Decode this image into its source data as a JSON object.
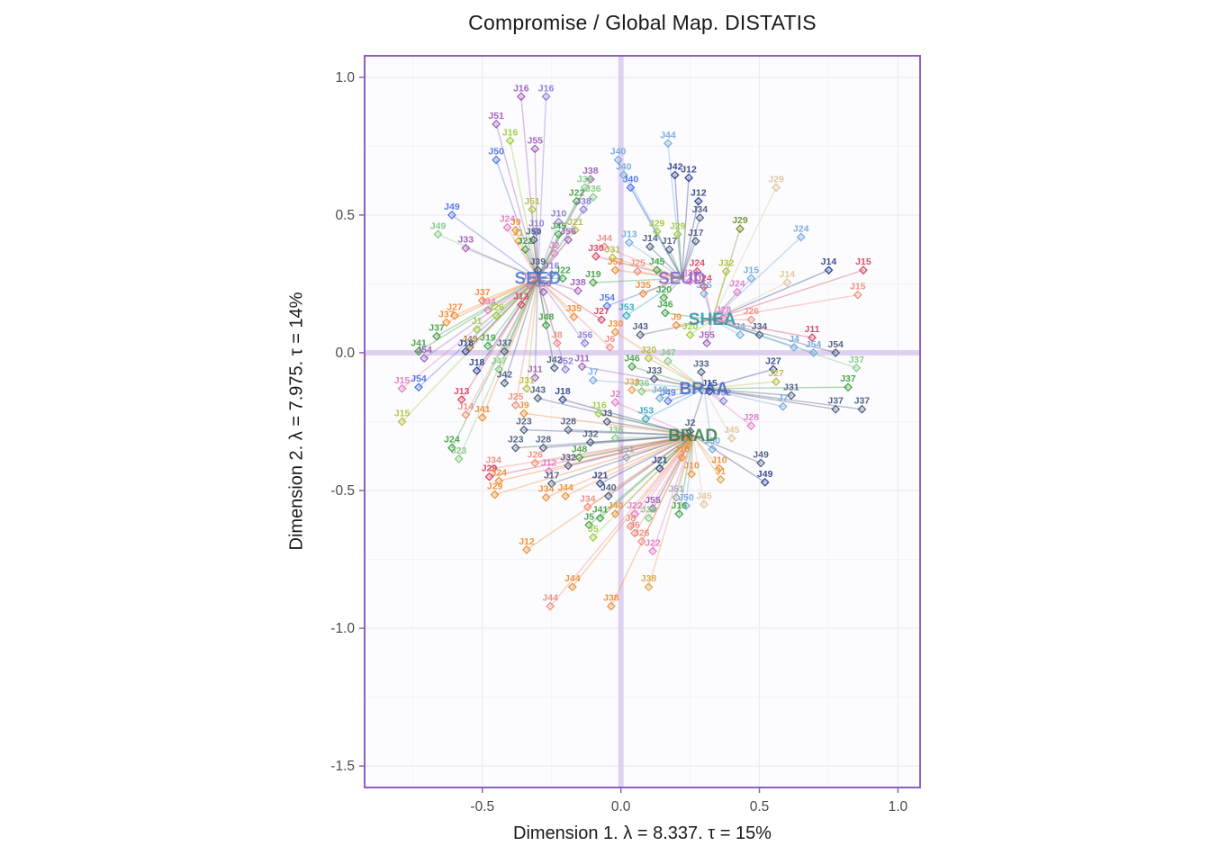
{
  "chart_data": {
    "type": "scatter",
    "title": "Compromise / Global Map. DISTATIS",
    "xlabel": "Dimension 1.   λ = 8.337.   τ = 15%",
    "ylabel": "Dimension 2.   λ = 7.975.   τ = 14%",
    "xlim": [
      -0.925,
      1.08
    ],
    "ylim": [
      -1.578,
      1.078
    ],
    "grid": true,
    "legend": "none",
    "xticks": [
      {
        "v": -0.5,
        "label": "-0.5"
      },
      {
        "v": 0.0,
        "label": "0.0"
      },
      {
        "v": 0.5,
        "label": "0.5"
      },
      {
        "v": 1.0,
        "label": "1.0"
      }
    ],
    "yticks": [
      {
        "v": 1.0,
        "label": "1.0"
      },
      {
        "v": 0.5,
        "label": "0.5"
      },
      {
        "v": 0.0,
        "label": "0.0"
      },
      {
        "v": -0.5,
        "label": "-0.5"
      },
      {
        "v": -1.0,
        "label": "-1.0"
      },
      {
        "v": -1.5,
        "label": "-1.5"
      }
    ],
    "minor_x": [
      -0.75,
      -0.25,
      0.25,
      0.75
    ],
    "minor_y": [
      -1.25,
      -0.75,
      -0.25,
      0.25,
      0.75
    ],
    "colors": {
      "panel_bg": "#fcfbfe",
      "grid_major": "#eceaf2",
      "grid_minor": "#f4f3f9",
      "crosshair": "#dccdf0",
      "border": "#8f5ec0",
      "tick_text": "#4a4a4a",
      "title_text": "#1a1a1a"
    },
    "palette": [
      "#4a6fe3",
      "#8676d4",
      "#9b59b6",
      "#e377c2",
      "#d9415a",
      "#ef8a7a",
      "#f08c2e",
      "#e0a23e",
      "#ddc49a",
      "#b5bd3a",
      "#9acd32",
      "#3ca03c",
      "#7fc97f",
      "#2aa8b8",
      "#6fa8dc",
      "#46597a",
      "#27408b",
      "#a0784a",
      "#9aa5b1",
      "#6b8e23"
    ],
    "centers": [
      {
        "label": "SEED",
        "x": -0.3,
        "y": 0.27,
        "color": "#4a79c4"
      },
      {
        "label": "SEUD",
        "x": 0.22,
        "y": 0.27,
        "color": "#8a63c9"
      },
      {
        "label": "SHEA",
        "x": 0.33,
        "y": 0.12,
        "color": "#2a93a8"
      },
      {
        "label": "BRAA",
        "x": 0.3,
        "y": -0.13,
        "color": "#4466bb"
      },
      {
        "label": "BRAD",
        "x": 0.26,
        "y": -0.3,
        "color": "#3a7d44"
      }
    ],
    "points": [
      [
        "J16",
        -0.36,
        0.93,
        2,
        0
      ],
      [
        "J16",
        -0.27,
        0.93,
        1,
        0
      ],
      [
        "J51",
        -0.45,
        0.83,
        2,
        0
      ],
      [
        "J16",
        -0.4,
        0.77,
        10,
        0
      ],
      [
        "J55",
        -0.31,
        0.74,
        2,
        0
      ],
      [
        "J50",
        -0.45,
        0.7,
        0,
        0
      ],
      [
        "J49",
        -0.61,
        0.5,
        0,
        0
      ],
      [
        "J49",
        -0.66,
        0.43,
        12,
        0
      ],
      [
        "J33",
        -0.56,
        0.38,
        2,
        0
      ],
      [
        "J24",
        -0.41,
        0.455,
        3,
        0
      ],
      [
        "J9",
        -0.38,
        0.445,
        6,
        0
      ],
      [
        "J10",
        -0.305,
        0.44,
        1,
        0
      ],
      [
        "J50",
        -0.315,
        0.41,
        15,
        0
      ],
      [
        "J1",
        -0.37,
        0.405,
        7,
        0
      ],
      [
        "J22",
        -0.345,
        0.375,
        11,
        0
      ],
      [
        "J51",
        -0.32,
        0.52,
        9,
        0
      ],
      [
        "J38",
        -0.135,
        0.52,
        1,
        0
      ],
      [
        "J22",
        -0.16,
        0.55,
        11,
        0
      ],
      [
        "J36",
        -0.13,
        0.6,
        12,
        0
      ],
      [
        "J36",
        -0.1,
        0.565,
        12,
        0
      ],
      [
        "J38",
        -0.11,
        0.63,
        2,
        0
      ],
      [
        "J45",
        -0.225,
        0.43,
        11,
        0
      ],
      [
        "J21",
        -0.165,
        0.445,
        9,
        0
      ],
      [
        "J10",
        -0.225,
        0.475,
        1,
        0
      ],
      [
        "J56",
        -0.19,
        0.41,
        2,
        0
      ],
      [
        "J44",
        0.17,
        0.76,
        14,
        1
      ],
      [
        "J40",
        -0.01,
        0.7,
        14,
        1
      ],
      [
        "J40",
        0.01,
        0.645,
        14,
        1
      ],
      [
        "J40",
        0.035,
        0.6,
        0,
        1
      ],
      [
        "J42",
        0.195,
        0.645,
        16,
        1
      ],
      [
        "J12",
        0.245,
        0.635,
        16,
        1
      ],
      [
        "J12",
        0.28,
        0.55,
        16,
        1
      ],
      [
        "J34",
        0.285,
        0.49,
        15,
        1
      ],
      [
        "J29",
        0.13,
        0.44,
        10,
        1
      ],
      [
        "J29",
        0.205,
        0.43,
        10,
        1
      ],
      [
        "J17",
        0.27,
        0.405,
        15,
        1
      ],
      [
        "J30",
        -0.09,
        0.35,
        4,
        1
      ],
      [
        "J44",
        -0.06,
        0.385,
        5,
        1
      ],
      [
        "J31",
        -0.03,
        0.345,
        9,
        1
      ],
      [
        "J13",
        0.03,
        0.4,
        14,
        1
      ],
      [
        "J14",
        0.105,
        0.385,
        15,
        1
      ],
      [
        "J17",
        0.175,
        0.375,
        15,
        1
      ],
      [
        "J52",
        -0.02,
        0.3,
        6,
        1
      ],
      [
        "J25",
        0.06,
        0.295,
        5,
        1
      ],
      [
        "J45",
        0.13,
        0.3,
        11,
        1
      ],
      [
        "J19",
        -0.1,
        0.255,
        11,
        1
      ],
      [
        "J54",
        -0.05,
        0.17,
        0,
        1
      ],
      [
        "J53",
        0.02,
        0.135,
        13,
        1
      ],
      [
        "J20",
        0.155,
        0.2,
        11,
        1
      ],
      [
        "J35",
        0.08,
        0.215,
        6,
        1
      ],
      [
        "J24",
        0.275,
        0.295,
        4,
        1
      ],
      [
        "J23",
        0.25,
        0.26,
        3,
        1
      ],
      [
        "J29",
        0.56,
        0.6,
        8,
        2
      ],
      [
        "J24",
        0.65,
        0.42,
        14,
        2
      ],
      [
        "J29",
        0.43,
        0.45,
        19,
        2
      ],
      [
        "J14",
        0.75,
        0.3,
        16,
        2
      ],
      [
        "J15",
        0.875,
        0.3,
        4,
        2
      ],
      [
        "J15",
        0.855,
        0.21,
        5,
        2
      ],
      [
        "J14",
        0.6,
        0.255,
        8,
        2
      ],
      [
        "J15",
        0.47,
        0.27,
        14,
        2
      ],
      [
        "J32",
        0.38,
        0.295,
        9,
        2
      ],
      [
        "J24",
        0.42,
        0.22,
        3,
        2
      ],
      [
        "J24",
        0.3,
        0.24,
        4,
        2
      ],
      [
        "J15",
        0.3,
        0.215,
        14,
        2
      ],
      [
        "J54",
        0.695,
        0.0,
        14,
        2
      ],
      [
        "J54",
        0.775,
        0.0,
        15,
        2
      ],
      [
        "J37",
        0.85,
        -0.055,
        12,
        2
      ],
      [
        "J11",
        0.69,
        0.055,
        4,
        2
      ],
      [
        "J4",
        0.625,
        0.02,
        14,
        2
      ],
      [
        "J34",
        0.5,
        0.065,
        15,
        2
      ],
      [
        "J46",
        0.16,
        0.145,
        11,
        2
      ],
      [
        "J9",
        0.2,
        0.1,
        6,
        2
      ],
      [
        "J20",
        0.25,
        0.065,
        10,
        2
      ],
      [
        "J55",
        0.31,
        0.035,
        2,
        2
      ],
      [
        "J28",
        0.37,
        0.125,
        3,
        2
      ],
      [
        "J4",
        0.43,
        0.065,
        14,
        2
      ],
      [
        "J26",
        0.47,
        0.12,
        5,
        2
      ],
      [
        "J43",
        0.07,
        0.065,
        15,
        2
      ],
      [
        "J27",
        0.55,
        -0.06,
        16,
        3
      ],
      [
        "J27",
        0.56,
        -0.105,
        9,
        3
      ],
      [
        "J31",
        0.615,
        -0.155,
        15,
        3
      ],
      [
        "J7",
        0.585,
        -0.195,
        14,
        3
      ],
      [
        "J37",
        0.82,
        -0.125,
        11,
        3
      ],
      [
        "J37",
        0.775,
        -0.205,
        15,
        3
      ],
      [
        "J37",
        0.87,
        -0.205,
        15,
        3
      ],
      [
        "J28",
        0.47,
        -0.265,
        3,
        3
      ],
      [
        "J2",
        0.25,
        -0.285,
        15,
        3
      ],
      [
        "J15",
        0.32,
        -0.14,
        16,
        3
      ],
      [
        "J33",
        0.29,
        -0.07,
        15,
        3
      ],
      [
        "J49",
        0.17,
        -0.175,
        0,
        3
      ],
      [
        "J36",
        0.075,
        -0.14,
        12,
        3
      ],
      [
        "J33",
        0.12,
        -0.095,
        15,
        3
      ],
      [
        "J49",
        0.14,
        -0.165,
        14,
        3
      ],
      [
        "J46",
        0.04,
        -0.05,
        11,
        3
      ],
      [
        "J47",
        0.17,
        -0.03,
        12,
        3
      ],
      [
        "J20",
        0.1,
        -0.02,
        9,
        3
      ],
      [
        "J30",
        -0.02,
        0.075,
        6,
        3
      ],
      [
        "J11",
        -0.14,
        -0.05,
        2,
        3
      ],
      [
        "J7",
        -0.1,
        -0.1,
        14,
        3
      ],
      [
        "J39",
        0.04,
        -0.135,
        7,
        3
      ],
      [
        "J53",
        0.09,
        -0.24,
        13,
        3
      ],
      [
        "J50",
        0.33,
        -0.35,
        14,
        3
      ],
      [
        "J45",
        0.4,
        -0.31,
        8,
        3
      ],
      [
        "J52",
        0.37,
        -0.175,
        1,
        3
      ],
      [
        "J49",
        0.52,
        -0.47,
        16,
        4
      ],
      [
        "J49",
        0.505,
        -0.4,
        15,
        4
      ],
      [
        "J10",
        0.355,
        -0.42,
        6,
        4
      ],
      [
        "J10",
        0.255,
        -0.44,
        6,
        4
      ],
      [
        "J1",
        0.36,
        -0.46,
        7,
        4
      ],
      [
        "J21",
        0.14,
        -0.42,
        16,
        4
      ],
      [
        "J10",
        0.22,
        -0.38,
        6,
        4
      ],
      [
        "J1",
        0.24,
        -0.335,
        7,
        4
      ],
      [
        "J51",
        0.02,
        -0.38,
        18,
        4
      ],
      [
        "J51",
        0.2,
        -0.525,
        18,
        4
      ],
      [
        "J45",
        0.3,
        -0.55,
        8,
        4
      ],
      [
        "J50",
        0.235,
        -0.555,
        14,
        4
      ],
      [
        "J16",
        0.21,
        -0.585,
        11,
        4
      ],
      [
        "J36",
        0.1,
        -0.6,
        12,
        4
      ],
      [
        "J55",
        0.115,
        -0.565,
        2,
        4
      ],
      [
        "J22",
        0.05,
        -0.585,
        3,
        4
      ],
      [
        "J22",
        0.115,
        -0.72,
        3,
        4
      ],
      [
        "J26",
        0.075,
        -0.685,
        5,
        4
      ],
      [
        "J6",
        0.05,
        -0.655,
        5,
        4
      ],
      [
        "J8",
        0.035,
        -0.63,
        5,
        4
      ],
      [
        "J38",
        0.1,
        -0.85,
        7,
        4
      ],
      [
        "J38",
        -0.035,
        -0.92,
        6,
        4
      ],
      [
        "J44",
        -0.255,
        -0.92,
        5,
        4
      ],
      [
        "J44",
        -0.175,
        -0.85,
        6,
        4
      ],
      [
        "J12",
        -0.34,
        -0.715,
        6,
        4
      ],
      [
        "J5",
        -0.1,
        -0.67,
        10,
        4
      ],
      [
        "J5",
        -0.115,
        -0.625,
        11,
        4
      ],
      [
        "J41",
        -0.075,
        -0.6,
        11,
        4
      ],
      [
        "J40",
        -0.02,
        -0.585,
        6,
        4
      ],
      [
        "J34",
        -0.12,
        -0.56,
        5,
        4
      ],
      [
        "J44",
        -0.2,
        -0.52,
        6,
        4
      ],
      [
        "J34",
        -0.27,
        -0.525,
        6,
        4
      ],
      [
        "J17",
        -0.25,
        -0.475,
        15,
        4
      ],
      [
        "J21",
        -0.075,
        -0.475,
        16,
        4
      ],
      [
        "J40",
        -0.045,
        -0.52,
        15,
        4
      ],
      [
        "J32",
        -0.19,
        -0.41,
        15,
        4
      ],
      [
        "J12",
        -0.26,
        -0.43,
        3,
        4
      ],
      [
        "J26",
        -0.31,
        -0.4,
        5,
        4
      ],
      [
        "J23",
        -0.38,
        -0.345,
        15,
        4
      ],
      [
        "J28",
        -0.28,
        -0.345,
        15,
        4
      ],
      [
        "J29",
        -0.475,
        -0.45,
        4,
        4
      ],
      [
        "J29",
        -0.455,
        -0.515,
        6,
        4
      ],
      [
        "J24",
        -0.44,
        -0.465,
        6,
        4
      ],
      [
        "J34",
        -0.46,
        -0.42,
        5,
        4
      ],
      [
        "J48",
        -0.15,
        -0.38,
        11,
        4
      ],
      [
        "J36",
        -0.02,
        -0.31,
        12,
        4
      ],
      [
        "J16",
        -0.08,
        -0.22,
        10,
        4
      ],
      [
        "J2",
        -0.02,
        -0.18,
        3,
        4
      ],
      [
        "J3",
        -0.05,
        -0.25,
        15,
        4
      ],
      [
        "J9",
        -0.35,
        -0.22,
        6,
        4
      ],
      [
        "J18",
        -0.21,
        -0.17,
        16,
        4
      ],
      [
        "J43",
        -0.3,
        -0.165,
        15,
        4
      ],
      [
        "J23",
        -0.35,
        -0.28,
        15,
        4
      ],
      [
        "J28",
        -0.19,
        -0.28,
        15,
        4
      ],
      [
        "J32",
        -0.11,
        -0.325,
        15,
        4
      ],
      [
        "J27",
        -0.6,
        0.135,
        6,
        0
      ],
      [
        "J37",
        -0.63,
        0.11,
        6,
        0
      ],
      [
        "J37",
        -0.665,
        0.06,
        11,
        0
      ],
      [
        "J41",
        -0.73,
        0.005,
        11,
        0
      ],
      [
        "J54",
        -0.71,
        -0.02,
        2,
        0
      ],
      [
        "J18",
        -0.56,
        0.005,
        16,
        0
      ],
      [
        "J49",
        -0.545,
        0.02,
        17,
        0
      ],
      [
        "J37",
        -0.42,
        0.005,
        15,
        0
      ],
      [
        "J15",
        -0.79,
        -0.13,
        3,
        0
      ],
      [
        "J54",
        -0.73,
        -0.125,
        0,
        0
      ],
      [
        "J15",
        -0.79,
        -0.25,
        9,
        0
      ],
      [
        "J13",
        -0.575,
        -0.17,
        4,
        0
      ],
      [
        "J14",
        -0.56,
        -0.225,
        5,
        0
      ],
      [
        "J41",
        -0.5,
        -0.235,
        6,
        0
      ],
      [
        "J24",
        -0.61,
        -0.345,
        11,
        0
      ],
      [
        "J23",
        -0.585,
        -0.385,
        12,
        0
      ],
      [
        "J19",
        -0.48,
        0.025,
        11,
        0
      ],
      [
        "J1",
        -0.52,
        0.085,
        10,
        0
      ],
      [
        "J26",
        -0.45,
        0.135,
        10,
        0
      ],
      [
        "J34",
        -0.48,
        0.155,
        3,
        0
      ],
      [
        "J37",
        -0.5,
        0.19,
        6,
        0
      ],
      [
        "J42",
        -0.42,
        -0.11,
        15,
        0
      ],
      [
        "J11",
        -0.31,
        -0.09,
        2,
        0
      ],
      [
        "J25",
        -0.38,
        -0.19,
        5,
        0
      ],
      [
        "J47",
        -0.44,
        -0.06,
        12,
        0
      ],
      [
        "J18",
        -0.52,
        -0.065,
        16,
        0
      ],
      [
        "J31",
        -0.34,
        -0.13,
        9,
        0
      ],
      [
        "J13",
        -0.36,
        0.175,
        4,
        0
      ],
      [
        "J2",
        -0.24,
        0.36,
        3,
        0
      ],
      [
        "J39",
        -0.3,
        0.3,
        15,
        0
      ],
      [
        "J56",
        -0.28,
        0.22,
        2,
        0
      ],
      [
        "J23",
        -0.33,
        0.245,
        3,
        0
      ],
      [
        "J16",
        -0.25,
        0.285,
        1,
        0
      ],
      [
        "J22",
        -0.21,
        0.27,
        11,
        0
      ],
      [
        "J38",
        -0.155,
        0.225,
        2,
        0
      ],
      [
        "J27",
        -0.07,
        0.12,
        4,
        0
      ],
      [
        "J42",
        -0.24,
        -0.055,
        15,
        0
      ],
      [
        "J52",
        -0.2,
        -0.06,
        1,
        0
      ],
      [
        "J6",
        -0.04,
        0.02,
        5,
        0
      ],
      [
        "J56",
        -0.13,
        0.035,
        1,
        0
      ],
      [
        "J8",
        -0.23,
        0.035,
        5,
        0
      ],
      [
        "J48",
        -0.27,
        0.1,
        11,
        0
      ],
      [
        "J35",
        -0.17,
        0.13,
        6,
        0
      ]
    ]
  }
}
